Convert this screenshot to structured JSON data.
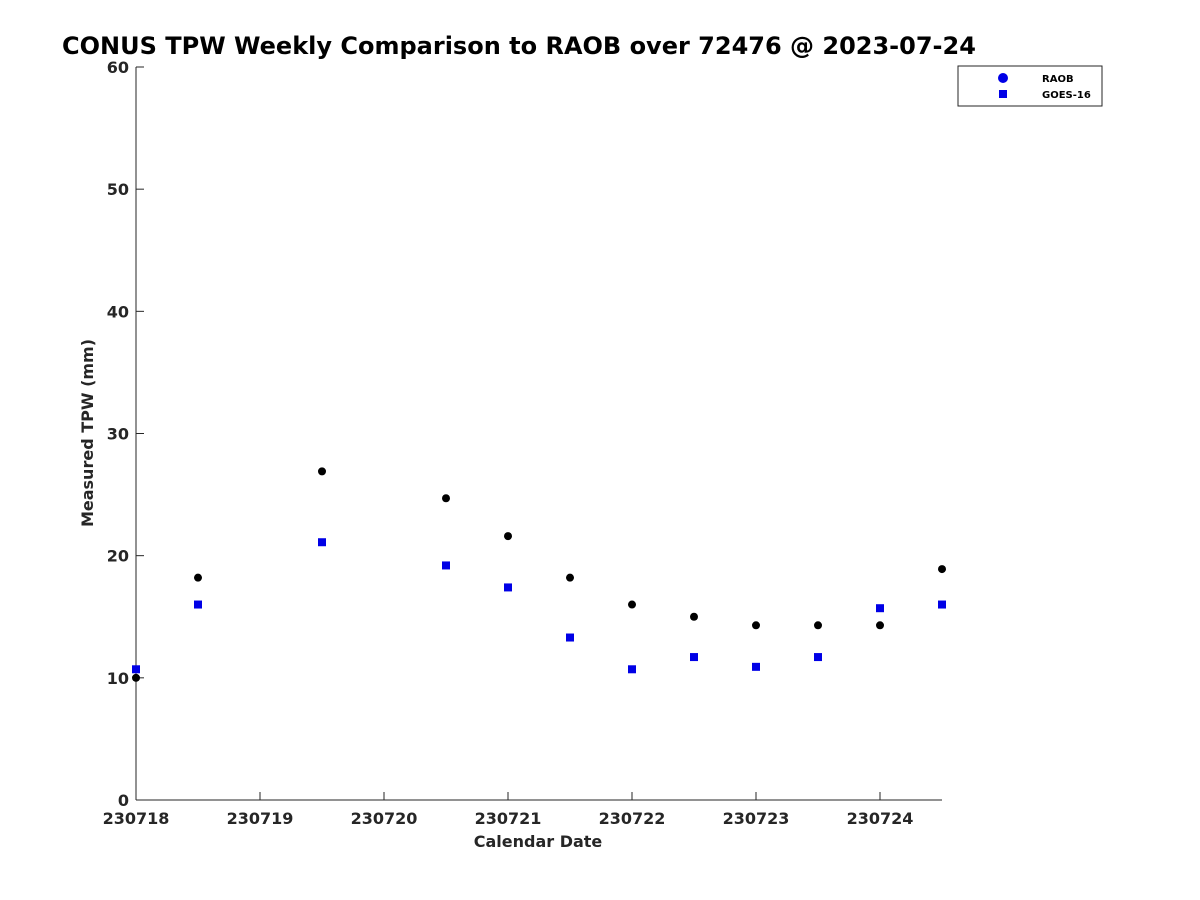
{
  "chart_data": {
    "type": "scatter",
    "title": "CONUS TPW Weekly Comparison to RAOB over 72476 @ 2023-07-24",
    "xlabel": "Calendar Date",
    "ylabel": "Measured TPW (mm)",
    "xlim": [
      230718,
      230724.5
    ],
    "ylim": [
      0,
      60
    ],
    "x_ticks": [
      {
        "value": 230718,
        "label": "230718"
      },
      {
        "value": 230719,
        "label": "230719"
      },
      {
        "value": 230720,
        "label": "230720"
      },
      {
        "value": 230721,
        "label": "230721"
      },
      {
        "value": 230722,
        "label": "230722"
      },
      {
        "value": 230723,
        "label": "230723"
      },
      {
        "value": 230724,
        "label": "230724"
      }
    ],
    "y_ticks": [
      {
        "value": 0,
        "label": "0"
      },
      {
        "value": 10,
        "label": "10"
      },
      {
        "value": 20,
        "label": "20"
      },
      {
        "value": 30,
        "label": "30"
      },
      {
        "value": 40,
        "label": "40"
      },
      {
        "value": 50,
        "label": "50"
      },
      {
        "value": 60,
        "label": "60"
      }
    ],
    "grid": false,
    "legend_position": "top-right",
    "series": [
      {
        "name": "RAOB",
        "marker": "circle",
        "color": "#000000",
        "legend_color": "#0000e6",
        "points": [
          {
            "x": 230718.0,
            "y": 10.0
          },
          {
            "x": 230718.5,
            "y": 18.2
          },
          {
            "x": 230719.5,
            "y": 26.9
          },
          {
            "x": 230720.5,
            "y": 24.7
          },
          {
            "x": 230721.0,
            "y": 21.6
          },
          {
            "x": 230721.5,
            "y": 18.2
          },
          {
            "x": 230722.0,
            "y": 16.0
          },
          {
            "x": 230722.5,
            "y": 15.0
          },
          {
            "x": 230723.0,
            "y": 14.3
          },
          {
            "x": 230723.5,
            "y": 14.3
          },
          {
            "x": 230724.0,
            "y": 14.3
          },
          {
            "x": 230724.5,
            "y": 18.9
          }
        ]
      },
      {
        "name": "GOES-16",
        "marker": "square",
        "color": "#0000e6",
        "legend_color": "#0000e6",
        "points": [
          {
            "x": 230718.0,
            "y": 10.7
          },
          {
            "x": 230718.5,
            "y": 16.0
          },
          {
            "x": 230719.5,
            "y": 21.1
          },
          {
            "x": 230720.5,
            "y": 19.2
          },
          {
            "x": 230721.0,
            "y": 17.4
          },
          {
            "x": 230721.5,
            "y": 13.3
          },
          {
            "x": 230722.0,
            "y": 10.7
          },
          {
            "x": 230722.5,
            "y": 11.7
          },
          {
            "x": 230723.0,
            "y": 10.9
          },
          {
            "x": 230723.5,
            "y": 11.7
          },
          {
            "x": 230724.0,
            "y": 15.7
          },
          {
            "x": 230724.5,
            "y": 16.0
          }
        ]
      }
    ]
  }
}
